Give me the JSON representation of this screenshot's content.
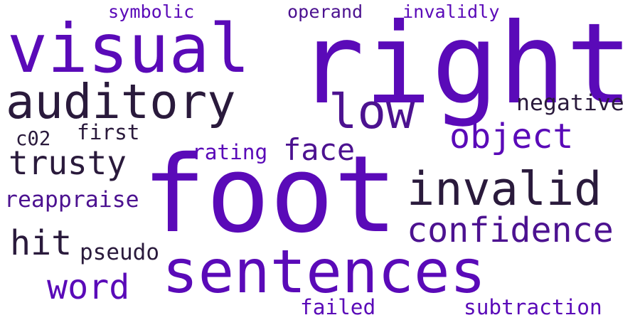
{
  "palette": {
    "violet": "#5a0ab8",
    "purple": "#4c1290",
    "dark": "#2a1a3c",
    "background": "#ffffff"
  },
  "words": [
    {
      "text": "right",
      "color": "violet"
    },
    {
      "text": "foot",
      "color": "violet"
    },
    {
      "text": "visual",
      "color": "violet"
    },
    {
      "text": "sentences",
      "color": "violet"
    },
    {
      "text": "auditory",
      "color": "dark"
    },
    {
      "text": "invalid",
      "color": "dark"
    },
    {
      "text": "low",
      "color": "purple"
    },
    {
      "text": "object",
      "color": "violet"
    },
    {
      "text": "confidence",
      "color": "purple"
    },
    {
      "text": "trusty",
      "color": "dark"
    },
    {
      "text": "face",
      "color": "purple"
    },
    {
      "text": "hit",
      "color": "dark"
    },
    {
      "text": "word",
      "color": "violet"
    },
    {
      "text": "negative",
      "color": "dark"
    },
    {
      "text": "reappraise",
      "color": "purple"
    },
    {
      "text": "first",
      "color": "dark"
    },
    {
      "text": "rating",
      "color": "violet"
    },
    {
      "text": "pseudo",
      "color": "dark"
    },
    {
      "text": "c02",
      "color": "dark"
    },
    {
      "text": "failed",
      "color": "violet"
    },
    {
      "text": "subtraction",
      "color": "violet"
    },
    {
      "text": "symbolic",
      "color": "violet"
    },
    {
      "text": "operand",
      "color": "purple"
    },
    {
      "text": "invalidly",
      "color": "violet"
    }
  ]
}
